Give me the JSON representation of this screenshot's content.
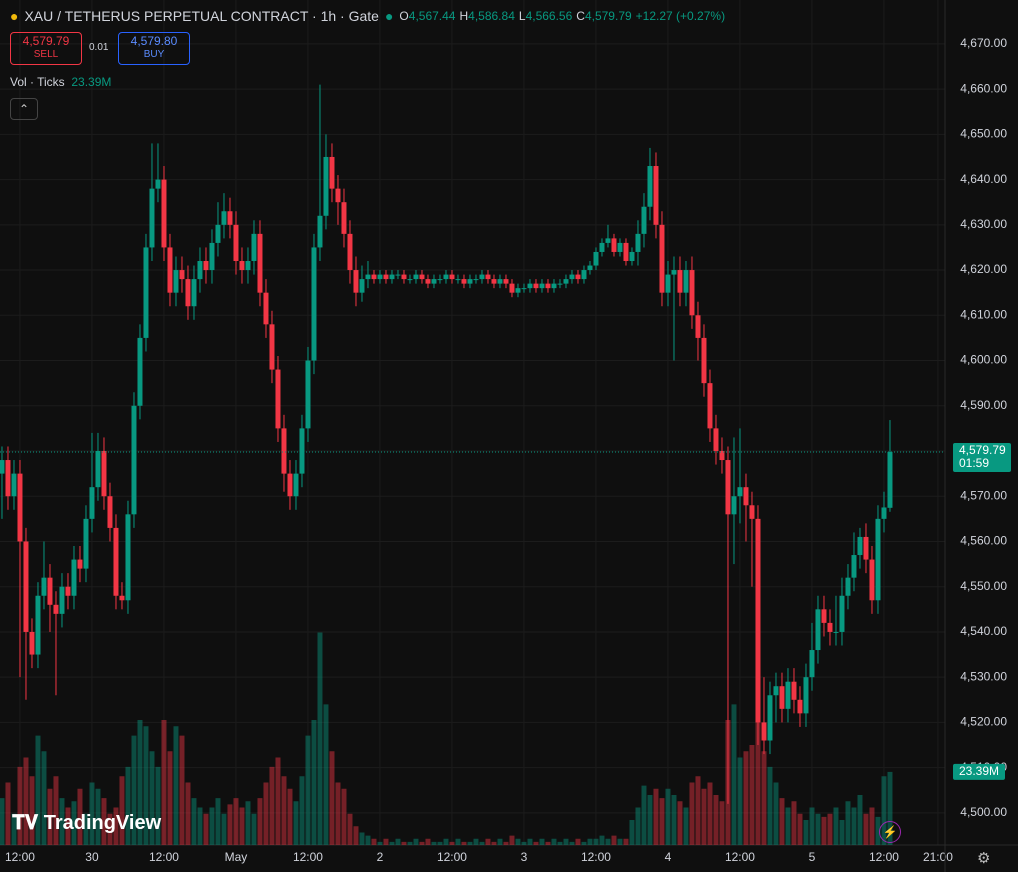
{
  "chart_data": {
    "type": "candlestick",
    "title": "XAU / TETHERUS PERPETUAL CONTRACT · 1h · Gate",
    "legend": [
      {
        "key": "O",
        "text": "4,567.44"
      },
      {
        "key": "H",
        "text": "4,586.84"
      },
      {
        "key": "L",
        "text": "4,566.56"
      },
      {
        "key": "C",
        "text": "4,579.79"
      }
    ],
    "change": "+12.27 (+0.27%)",
    "sell": {
      "price": "4,579.79",
      "label": "SELL"
    },
    "spread": "0.01",
    "buy": {
      "price": "4,579.80",
      "label": "BUY"
    },
    "volume_title": "Vol · Ticks",
    "volume_label": {
      "value": 23.39,
      "label": "23.39M"
    },
    "last_price": {
      "value": 4579.79,
      "label": "4,579.79"
    },
    "countdown": "01:59",
    "watermark": "TradingView",
    "up_color": "#089981",
    "down_color": "#f23645",
    "xlim": [
      -0.33,
      157.17
    ],
    "ylim": [
      4492.9,
      4679.7
    ],
    "volume_ylim": [
      0,
      80
    ],
    "grid": true,
    "yticks": [
      {
        "value": 4500,
        "label": "4,500.00"
      },
      {
        "value": 4510,
        "label": "4,510.00"
      },
      {
        "value": 4520,
        "label": "4,520.00"
      },
      {
        "value": 4530,
        "label": "4,530.00"
      },
      {
        "value": 4540,
        "label": "4,540.00"
      },
      {
        "value": 4550,
        "label": "4,550.00"
      },
      {
        "value": 4560,
        "label": "4,560.00"
      },
      {
        "value": 4570,
        "label": "4,570.00"
      },
      {
        "value": 4580,
        "label": "4,580.00"
      },
      {
        "value": 4590,
        "label": "4,590.00"
      },
      {
        "value": 4600,
        "label": "4,600.00"
      },
      {
        "value": 4610,
        "label": "4,610.00"
      },
      {
        "value": 4620,
        "label": "4,620.00"
      },
      {
        "value": 4630,
        "label": "4,630.00"
      },
      {
        "value": 4640,
        "label": "4,640.00"
      },
      {
        "value": 4650,
        "label": "4,650.00"
      },
      {
        "value": 4660,
        "label": "4,660.00"
      },
      {
        "value": 4670,
        "label": "4,670.00"
      }
    ],
    "xticks": [
      {
        "value": 3,
        "label": "12:00"
      },
      {
        "value": 15,
        "label": "30"
      },
      {
        "value": 27,
        "label": "12:00"
      },
      {
        "value": 39,
        "label": "May"
      },
      {
        "value": 51,
        "label": "12:00"
      },
      {
        "value": 63,
        "label": "2"
      },
      {
        "value": 75,
        "label": "12:00"
      },
      {
        "value": 87,
        "label": "3"
      },
      {
        "value": 99,
        "label": "12:00"
      },
      {
        "value": 111,
        "label": "4"
      },
      {
        "value": 123,
        "label": "12:00"
      },
      {
        "value": 135,
        "label": "5"
      },
      {
        "value": 147,
        "label": "12:00"
      },
      {
        "value": 156,
        "label": "21:00"
      }
    ],
    "open": [
      4575,
      4578,
      4570,
      4575,
      4560,
      4540,
      4535,
      4548,
      4552,
      4546,
      4544,
      4550,
      4548,
      4556,
      4554,
      4565,
      4572,
      4580,
      4570,
      4563,
      4548,
      4547,
      4566,
      4590,
      4605,
      4625,
      4638,
      4640,
      4625,
      4615,
      4620,
      4618,
      4612,
      4618,
      4622,
      4620,
      4626,
      4630,
      4633,
      4630,
      4622,
      4620,
      4622,
      4628,
      4615,
      4608,
      4598,
      4585,
      4575,
      4570,
      4575,
      4585,
      4600,
      4625,
      4632,
      4645,
      4638,
      4635,
      4628,
      4620,
      4615,
      4618,
      4619,
      4618,
      4619,
      4618,
      4619,
      4619,
      4618,
      4618,
      4619,
      4618,
      4617,
      4618,
      4618,
      4619,
      4618,
      4618,
      4617,
      4618,
      4618,
      4619,
      4618,
      4617,
      4618,
      4617,
      4615,
      4616,
      4616,
      4617,
      4616,
      4617,
      4616,
      4617,
      4617,
      4618,
      4619,
      4618,
      4620,
      4621,
      4624,
      4626,
      4627,
      4624,
      4626,
      4622,
      4624,
      4628,
      4634,
      4643,
      4630,
      4615,
      4619,
      4620,
      4615,
      4620,
      4610,
      4605,
      4595,
      4585,
      4580,
      4578,
      4566,
      4570,
      4572,
      4568,
      4565,
      4520,
      4516,
      4526,
      4528,
      4523,
      4529,
      4525,
      4522,
      4530,
      4536,
      4545,
      4542,
      4540,
      4540,
      4548,
      4552,
      4557,
      4561,
      4556,
      4547,
      4565,
      4567.44
    ],
    "high": [
      4581,
      4581,
      4578,
      4578,
      4563,
      4543,
      4551,
      4560,
      4555,
      4549,
      4553,
      4553,
      4559,
      4559,
      4568,
      4584,
      4584,
      4583,
      4573,
      4566,
      4551,
      4569,
      4593,
      4608,
      4628,
      4648,
      4648,
      4643,
      4628,
      4623,
      4623,
      4621,
      4621,
      4625,
      4625,
      4629,
      4635,
      4637,
      4636,
      4633,
      4625,
      4625,
      4631,
      4631,
      4618,
      4611,
      4601,
      4588,
      4578,
      4578,
      4588,
      4603,
      4628,
      4661,
      4650,
      4648,
      4641,
      4638,
      4631,
      4623,
      4621,
      4622,
      4620,
      4620,
      4620,
      4620,
      4620,
      4620,
      4619,
      4620,
      4620,
      4619,
      4619,
      4619,
      4620,
      4620,
      4619,
      4619,
      4619,
      4619,
      4620,
      4620,
      4619,
      4619,
      4619,
      4618,
      4617,
      4617,
      4618,
      4618,
      4618,
      4618,
      4618,
      4618,
      4619,
      4620,
      4620,
      4621,
      4622,
      4625,
      4627,
      4630,
      4628,
      4627,
      4627,
      4625,
      4631,
      4637,
      4647,
      4646,
      4633,
      4622,
      4623,
      4623,
      4622,
      4623,
      4613,
      4608,
      4598,
      4588,
      4583,
      4581,
      4583,
      4585,
      4575,
      4571,
      4568,
      4530,
      4529,
      4531,
      4531,
      4532,
      4532,
      4528,
      4533,
      4542,
      4548,
      4548,
      4545,
      4548,
      4552,
      4555,
      4562,
      4563,
      4564,
      4559,
      4568,
      4571,
      4586.84
    ],
    "low": [
      4565,
      4567,
      4567,
      4530,
      4525,
      4532,
      4532,
      4545,
      4540,
      4526,
      4541,
      4545,
      4545,
      4551,
      4551,
      4562,
      4569,
      4567,
      4560,
      4545,
      4545,
      4544,
      4563,
      4587,
      4602,
      4622,
      4635,
      4622,
      4612,
      4612,
      4615,
      4609,
      4609,
      4615,
      4617,
      4617,
      4623,
      4627,
      4627,
      4619,
      4617,
      4617,
      4619,
      4612,
      4605,
      4595,
      4582,
      4571,
      4567,
      4567,
      4572,
      4582,
      4597,
      4622,
      4629,
      4635,
      4630,
      4625,
      4617,
      4612,
      4613,
      4616,
      4617,
      4617,
      4617,
      4617,
      4618,
      4617,
      4617,
      4617,
      4617,
      4616,
      4616,
      4617,
      4617,
      4617,
      4617,
      4616,
      4616,
      4617,
      4617,
      4617,
      4616,
      4616,
      4616,
      4614,
      4614,
      4615,
      4615,
      4615,
      4615,
      4615,
      4615,
      4616,
      4616,
      4617,
      4617,
      4617,
      4619,
      4620,
      4623,
      4625,
      4623,
      4623,
      4621,
      4621,
      4621,
      4625,
      4631,
      4627,
      4612,
      4612,
      4600,
      4612,
      4612,
      4607,
      4600,
      4592,
      4582,
      4577,
      4575,
      4502,
      4555,
      4564,
      4560,
      4550,
      4515,
      4513,
      4513,
      4520,
      4520,
      4520,
      4522,
      4519,
      4519,
      4527,
      4533,
      4539,
      4537,
      4537,
      4537,
      4545,
      4549,
      4554,
      4553,
      4544,
      4544,
      4562,
      4566.56
    ],
    "close": [
      4578,
      4570,
      4575,
      4560,
      4540,
      4535,
      4548,
      4552,
      4546,
      4544,
      4550,
      4548,
      4556,
      4554,
      4565,
      4572,
      4580,
      4570,
      4563,
      4548,
      4547,
      4566,
      4590,
      4605,
      4625,
      4638,
      4640,
      4625,
      4615,
      4620,
      4618,
      4612,
      4618,
      4622,
      4620,
      4626,
      4630,
      4633,
      4630,
      4622,
      4620,
      4622,
      4628,
      4615,
      4608,
      4598,
      4585,
      4575,
      4570,
      4575,
      4585,
      4600,
      4625,
      4632,
      4645,
      4638,
      4635,
      4628,
      4620,
      4615,
      4618,
      4619,
      4618,
      4619,
      4618,
      4619,
      4619,
      4618,
      4618,
      4619,
      4618,
      4617,
      4618,
      4618,
      4619,
      4618,
      4618,
      4617,
      4618,
      4618,
      4619,
      4618,
      4617,
      4618,
      4617,
      4615,
      4616,
      4616,
      4617,
      4616,
      4617,
      4616,
      4617,
      4617,
      4618,
      4619,
      4618,
      4620,
      4621,
      4624,
      4626,
      4627,
      4624,
      4626,
      4622,
      4624,
      4628,
      4634,
      4643,
      4630,
      4615,
      4619,
      4620,
      4615,
      4620,
      4610,
      4605,
      4595,
      4585,
      4580,
      4578,
      4566,
      4570,
      4572,
      4568,
      4565,
      4520,
      4516,
      4526,
      4528,
      4523,
      4529,
      4525,
      4522,
      4530,
      4536,
      4545,
      4542,
      4540,
      4540,
      4548,
      4552,
      4557,
      4561,
      4556,
      4547,
      4565,
      4567.52,
      4579.79
    ],
    "volume": [
      15,
      20,
      10,
      25,
      28,
      22,
      35,
      30,
      18,
      22,
      15,
      12,
      14,
      18,
      10,
      20,
      18,
      15,
      10,
      12,
      22,
      25,
      35,
      40,
      38,
      30,
      25,
      40,
      30,
      38,
      35,
      20,
      15,
      12,
      10,
      12,
      15,
      10,
      13,
      15,
      12,
      14,
      10,
      15,
      20,
      25,
      28,
      22,
      18,
      14,
      22,
      35,
      40,
      68,
      45,
      30,
      20,
      18,
      10,
      6,
      4,
      3,
      2,
      1,
      2,
      1,
      2,
      1,
      1,
      2,
      1,
      2,
      1,
      1,
      2,
      1,
      2,
      1,
      1,
      2,
      1,
      2,
      1,
      2,
      1,
      3,
      2,
      1,
      2,
      1,
      2,
      1,
      2,
      1,
      2,
      1,
      2,
      1,
      2,
      2,
      3,
      2,
      3,
      2,
      2,
      8,
      12,
      19,
      16,
      18,
      15,
      18,
      16,
      14,
      12,
      20,
      22,
      18,
      20,
      16,
      14,
      40,
      45,
      28,
      30,
      32,
      54,
      30,
      25,
      20,
      15,
      12,
      14,
      10,
      8,
      12,
      10,
      9,
      10,
      12,
      8,
      14,
      12,
      16,
      10,
      12,
      9,
      22,
      23.39
    ]
  }
}
